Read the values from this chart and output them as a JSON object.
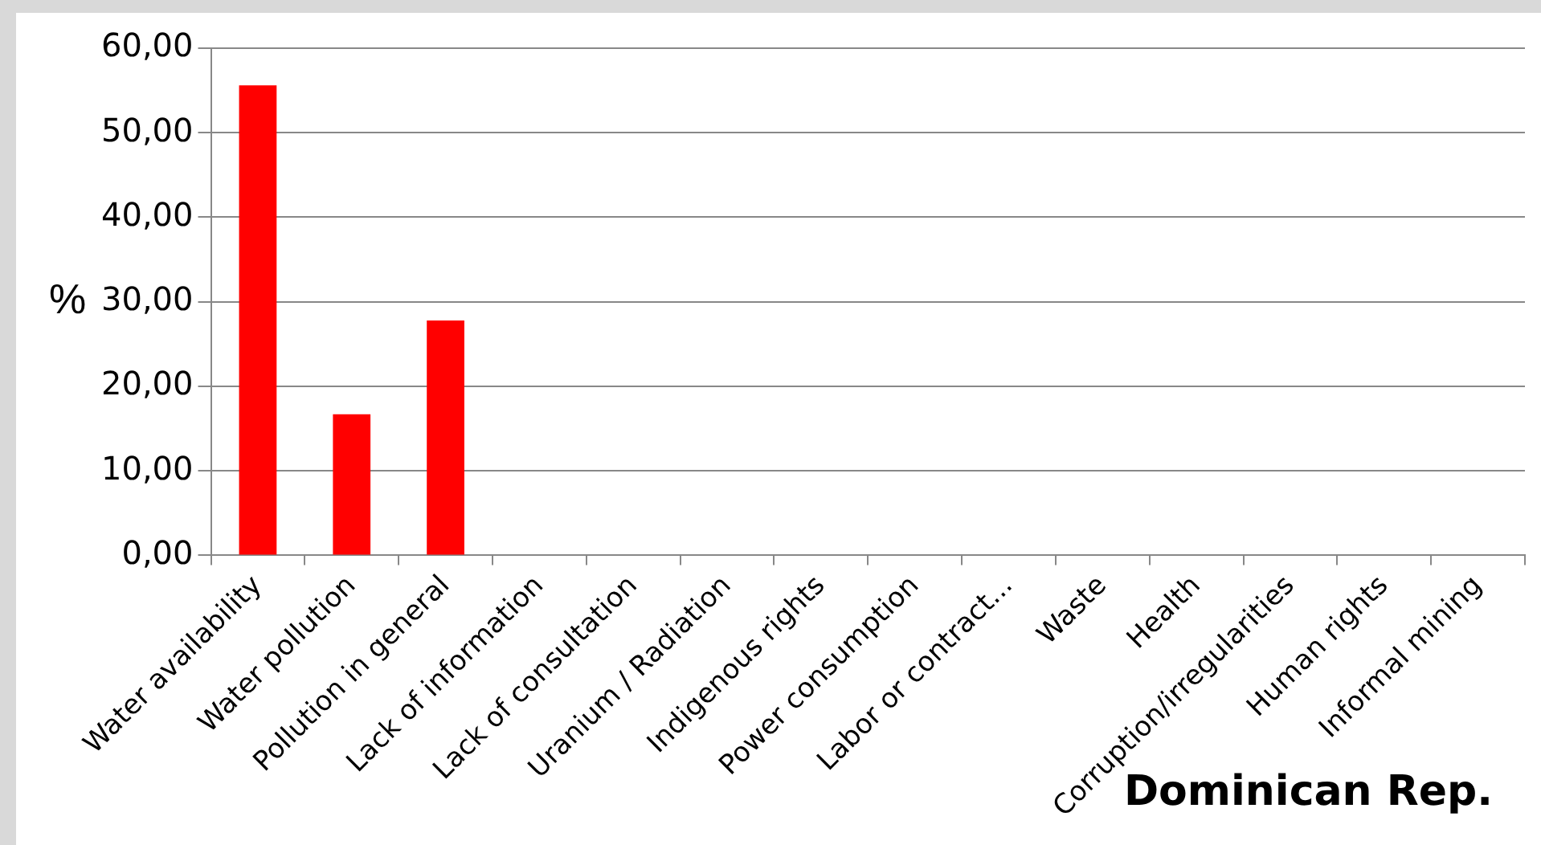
{
  "chart_data": {
    "type": "bar",
    "title": "Dominican Rep.",
    "ylabel": "%",
    "categories": [
      "Water availability",
      "Water pollution",
      "Pollution in general",
      "Lack of information",
      "Lack of consultation",
      "Uranium / Radiation",
      "Indigenous rights",
      "Power consumption",
      "Labor or contract...",
      "Waste",
      "Health",
      "Corruption/irregularities",
      "Human rights",
      "Informal mining"
    ],
    "values": [
      55.6,
      16.7,
      27.8,
      0,
      0,
      0,
      0,
      0,
      0,
      0,
      0,
      0,
      0,
      0
    ],
    "color": "#ff0000",
    "ylim": [
      0,
      60
    ],
    "yticks": [
      {
        "value": 0,
        "label": "0,00"
      },
      {
        "value": 10,
        "label": "10,00"
      },
      {
        "value": 20,
        "label": "20,00"
      },
      {
        "value": 30,
        "label": "30,00"
      },
      {
        "value": 40,
        "label": "40,00"
      },
      {
        "value": 50,
        "label": "50,00"
      },
      {
        "value": 60,
        "label": "60,00"
      }
    ],
    "grid": "y",
    "legend": false
  }
}
